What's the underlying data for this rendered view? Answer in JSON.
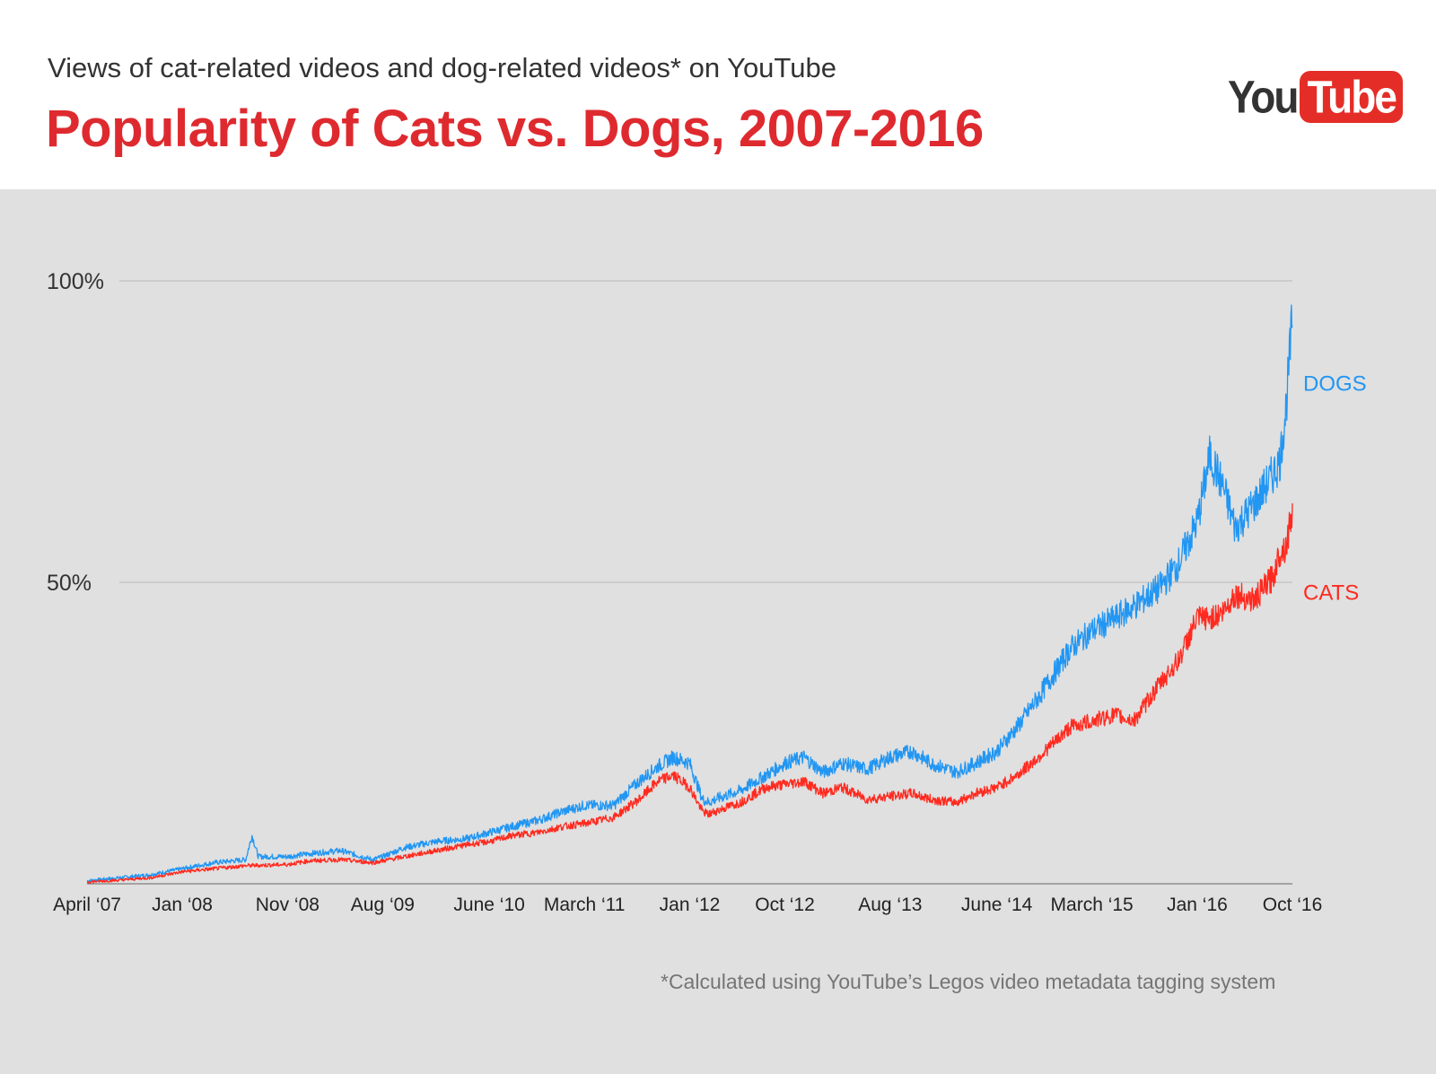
{
  "header": {
    "subtitle": "Views of cat-related videos and dog-related videos* on YouTube",
    "title": "Popularity of Cats vs. Dogs, 2007-2016"
  },
  "logo": {
    "you": "You",
    "tube": "Tube",
    "icon": "youtube-logo-icon"
  },
  "footnote": "*Calculated using YouTube’s Legos video metadata tagging system",
  "colors": {
    "title": "#de2a2f",
    "dogs": "#2196f3",
    "cats": "#ff2a1f",
    "gridline": "#b8b8b8",
    "panel": "#e0e0e0"
  },
  "chart_data": {
    "type": "line",
    "title": "Popularity of Cats vs. Dogs, 2007-2016",
    "xlabel": "",
    "ylabel": "",
    "xlim": [
      2007.25,
      2016.75
    ],
    "ylim": [
      0,
      100
    ],
    "y_ticks": [
      {
        "value": 50,
        "label": "50%"
      },
      {
        "value": 100,
        "label": "100%"
      }
    ],
    "x_ticks": [
      {
        "value": 2007.25,
        "label": "April ‘07"
      },
      {
        "value": 2008.0,
        "label": "Jan ‘08"
      },
      {
        "value": 2008.83,
        "label": "Nov ‘08"
      },
      {
        "value": 2009.58,
        "label": "Aug ‘09"
      },
      {
        "value": 2010.42,
        "label": "June ‘10"
      },
      {
        "value": 2011.17,
        "label": "March ‘11"
      },
      {
        "value": 2012.0,
        "label": "Jan ‘12"
      },
      {
        "value": 2012.75,
        "label": "Oct ‘12"
      },
      {
        "value": 2013.58,
        "label": "Aug ‘13"
      },
      {
        "value": 2014.42,
        "label": "June ‘14"
      },
      {
        "value": 2015.17,
        "label": "March ‘15"
      },
      {
        "value": 2016.0,
        "label": "Jan ‘16"
      },
      {
        "value": 2016.75,
        "label": "Oct ‘16"
      }
    ],
    "grid": true,
    "legend": "inline-right",
    "series": [
      {
        "name": "DOGS",
        "color": "#2196f3",
        "x": [
          2007.25,
          2007.5,
          2007.75,
          2008.0,
          2008.25,
          2008.5,
          2008.55,
          2008.6,
          2008.83,
          2009.0,
          2009.25,
          2009.5,
          2009.58,
          2009.75,
          2010.0,
          2010.25,
          2010.42,
          2010.6,
          2010.8,
          2011.0,
          2011.17,
          2011.4,
          2011.6,
          2011.75,
          2011.87,
          2012.0,
          2012.1,
          2012.15,
          2012.2,
          2012.4,
          2012.6,
          2012.75,
          2012.9,
          2013.05,
          2013.2,
          2013.4,
          2013.58,
          2013.75,
          2013.9,
          2014.1,
          2014.25,
          2014.42,
          2014.58,
          2014.75,
          2015.0,
          2015.17,
          2015.35,
          2015.5,
          2015.7,
          2015.85,
          2016.0,
          2016.1,
          2016.2,
          2016.3,
          2016.45,
          2016.6,
          2016.65,
          2016.7,
          2016.75
        ],
        "values": [
          0.5,
          1,
          1.5,
          2.5,
          3.5,
          4,
          8,
          4.5,
          4.5,
          5,
          5.5,
          4,
          4.5,
          6,
          7,
          7.5,
          8.5,
          9.5,
          10.5,
          12,
          13,
          13,
          17,
          19.5,
          21,
          20,
          14,
          13.5,
          14,
          15.5,
          18,
          20,
          21,
          18.5,
          20,
          19,
          21,
          22,
          20,
          18.5,
          20,
          22,
          26,
          31,
          39,
          42,
          44,
          46,
          49,
          53,
          60,
          71,
          66,
          59,
          63,
          68,
          70,
          79,
          94
        ]
      },
      {
        "name": "CATS",
        "color": "#ff2a1f",
        "x": [
          2007.25,
          2007.5,
          2007.75,
          2008.0,
          2008.25,
          2008.5,
          2008.83,
          2009.0,
          2009.25,
          2009.5,
          2009.58,
          2009.75,
          2010.0,
          2010.25,
          2010.42,
          2010.6,
          2010.8,
          2011.0,
          2011.17,
          2011.4,
          2011.6,
          2011.75,
          2011.87,
          2012.0,
          2012.1,
          2012.15,
          2012.2,
          2012.4,
          2012.6,
          2012.75,
          2012.9,
          2013.05,
          2013.2,
          2013.4,
          2013.58,
          2013.75,
          2013.9,
          2014.1,
          2014.25,
          2014.42,
          2014.58,
          2014.75,
          2015.0,
          2015.17,
          2015.35,
          2015.5,
          2015.7,
          2015.85,
          2016.0,
          2016.1,
          2016.2,
          2016.3,
          2016.45,
          2016.6,
          2016.65,
          2016.7,
          2016.75
        ],
        "values": [
          0.3,
          0.6,
          1,
          2,
          2.5,
          3,
          3.2,
          3.8,
          4,
          3.5,
          3.8,
          4.5,
          5.5,
          6.5,
          7,
          8,
          8.5,
          9.5,
          10,
          11,
          14,
          17,
          18,
          16,
          12,
          11.5,
          12,
          13.5,
          16,
          16.5,
          17,
          15,
          16,
          14,
          14.5,
          15,
          14,
          13.5,
          15,
          16,
          18,
          21,
          26,
          27,
          28,
          27,
          33,
          37,
          44,
          44,
          45,
          48,
          47,
          51,
          55,
          56,
          62
        ]
      }
    ]
  }
}
